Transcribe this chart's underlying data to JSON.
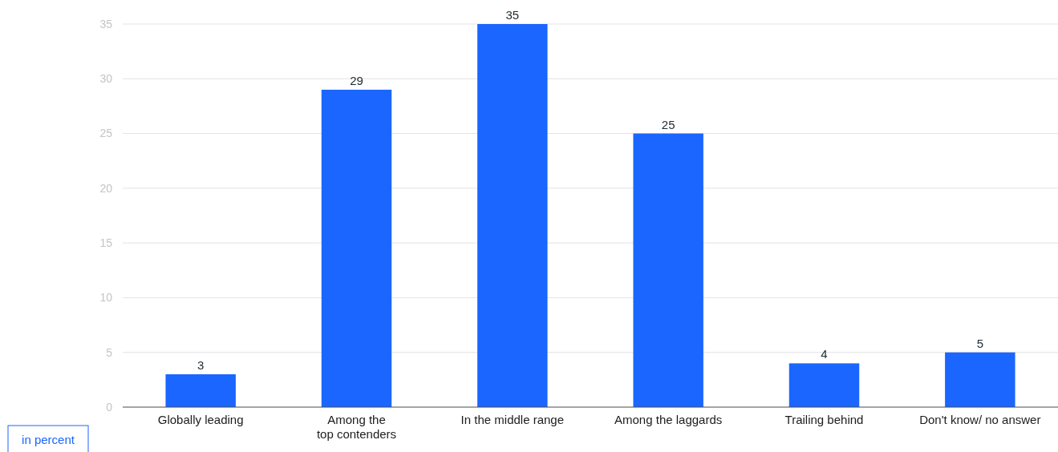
{
  "chart_data": {
    "type": "bar",
    "categories": [
      "Globally leading",
      "Among the\ntop contenders",
      "In the middle range",
      "Among the laggards",
      "Trailing behind",
      "Don't know/ no answer"
    ],
    "values": [
      3,
      29,
      35,
      25,
      4,
      5
    ],
    "color": "#1a66ff",
    "ylabel": "in percent",
    "ylim": [
      0,
      35
    ],
    "yticks": [
      0,
      5,
      10,
      15,
      20,
      25,
      30,
      35
    ],
    "grid": "y",
    "data_labels": true
  }
}
